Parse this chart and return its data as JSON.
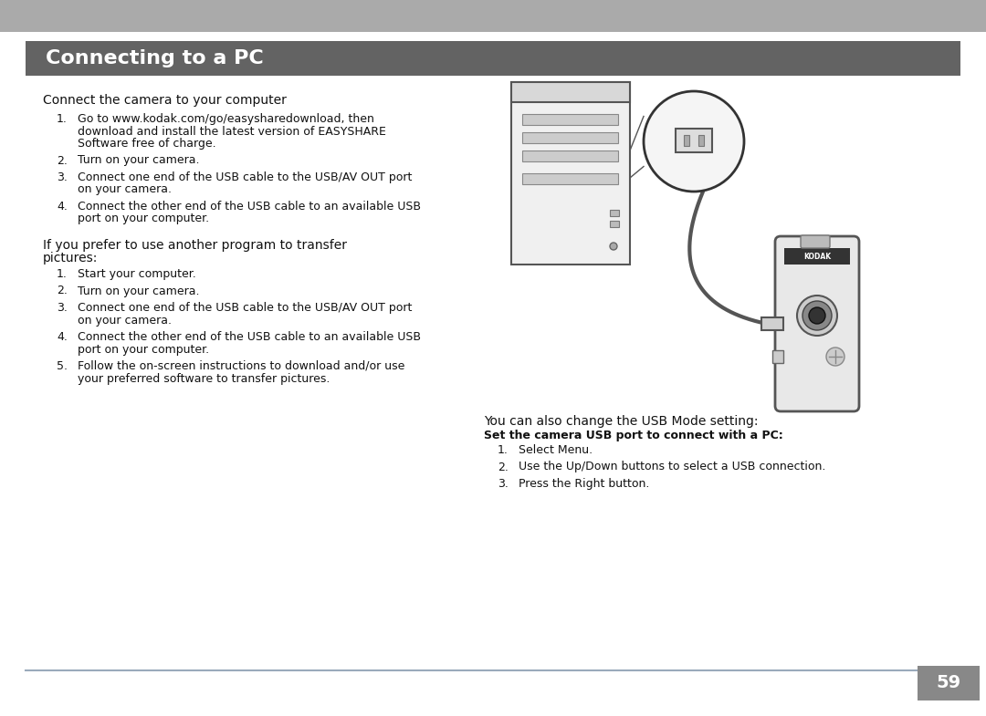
{
  "title": "Connecting to a PC",
  "title_bg_color": "#636363",
  "title_text_color": "#ffffff",
  "page_bg_color": "#ffffff",
  "top_bar_color": "#aaaaaa",
  "bottom_line_color": "#9aaabb",
  "page_number": "59",
  "page_num_bg": "#888888",
  "page_num_color": "#ffffff",
  "section1_header": "Connect the camera to your computer",
  "section1_items": [
    "Go to www.kodak.com/go/easysharedownload, then\ndownload and install the latest version of EASYSHARE\nSoftware free of charge.",
    "Turn on your camera.",
    "Connect one end of the USB cable to the USB/AV OUT port\non your camera.",
    "Connect the other end of the USB cable to an available USB\nport on your computer."
  ],
  "section2_header": "If you prefer to use another program to transfer\npictures:",
  "section2_items": [
    "Start your computer.",
    "Turn on your camera.",
    "Connect one end of the USB cable to the USB/AV OUT port\non your camera.",
    "Connect the other end of the USB cable to an available USB\nport on your computer.",
    "Follow the on-screen instructions to download and/or use\nyour preferred software to transfer pictures."
  ],
  "section3_header": "You can also change the USB Mode setting:",
  "section3_subheader": "Set the camera USB port to connect with a PC:",
  "section3_items": [
    "Select Menu.",
    "Use the Up/Down buttons to select a USB connection.",
    "Press the Right button."
  ]
}
